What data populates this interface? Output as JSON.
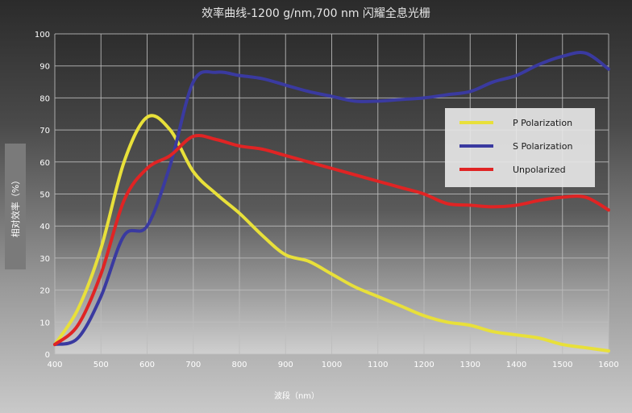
{
  "chart_data": {
    "type": "line",
    "title": "效率曲线-1200 g/nm,700 nm 闪耀全息光栅",
    "xlabel": "波段（nm）",
    "ylabel": "相对效率（%）",
    "xlim": [
      400,
      1600
    ],
    "ylim": [
      0,
      100
    ],
    "x_ticks": [
      400,
      500,
      600,
      700,
      800,
      900,
      1000,
      1100,
      1200,
      1300,
      1400,
      1500,
      1600
    ],
    "y_ticks": [
      0,
      10,
      20,
      30,
      40,
      50,
      60,
      70,
      80,
      90,
      100
    ],
    "grid": true,
    "legend_position": "top-right",
    "series": [
      {
        "name": "P Polarization",
        "color": "#e8e03a",
        "x": [
          400,
          450,
          500,
          550,
          600,
          650,
          700,
          750,
          800,
          850,
          900,
          950,
          1000,
          1050,
          1100,
          1150,
          1200,
          1250,
          1300,
          1350,
          1400,
          1450,
          1500,
          1550,
          1600
        ],
        "y": [
          3,
          14,
          33,
          60,
          74,
          70,
          57,
          50,
          44,
          37,
          31,
          29,
          25,
          21,
          18,
          15,
          12,
          10,
          9,
          7,
          6,
          5,
          3,
          2,
          1
        ]
      },
      {
        "name": "S Polarization",
        "color": "#3a3aa0",
        "x": [
          400,
          450,
          500,
          550,
          600,
          650,
          700,
          750,
          800,
          850,
          900,
          950,
          1000,
          1050,
          1100,
          1150,
          1200,
          1250,
          1300,
          1350,
          1400,
          1450,
          1500,
          1550,
          1600
        ],
        "y": [
          3,
          5,
          18,
          37,
          40,
          59,
          85,
          88,
          87,
          86,
          84,
          82,
          80.5,
          79,
          79,
          79.5,
          80,
          81,
          82,
          85,
          87,
          90.5,
          93,
          94,
          89
        ]
      },
      {
        "name": "Unpolarized",
        "color": "#e02424",
        "x": [
          400,
          450,
          500,
          550,
          600,
          650,
          700,
          750,
          800,
          850,
          900,
          950,
          1000,
          1050,
          1100,
          1150,
          1200,
          1250,
          1300,
          1350,
          1400,
          1450,
          1500,
          1550,
          1600
        ],
        "y": [
          3,
          9,
          25,
          48,
          58,
          62,
          68,
          67,
          65,
          64,
          62,
          60,
          58,
          56,
          54,
          52,
          50,
          47,
          46.5,
          46,
          46.5,
          48,
          49,
          49,
          45
        ]
      }
    ]
  }
}
